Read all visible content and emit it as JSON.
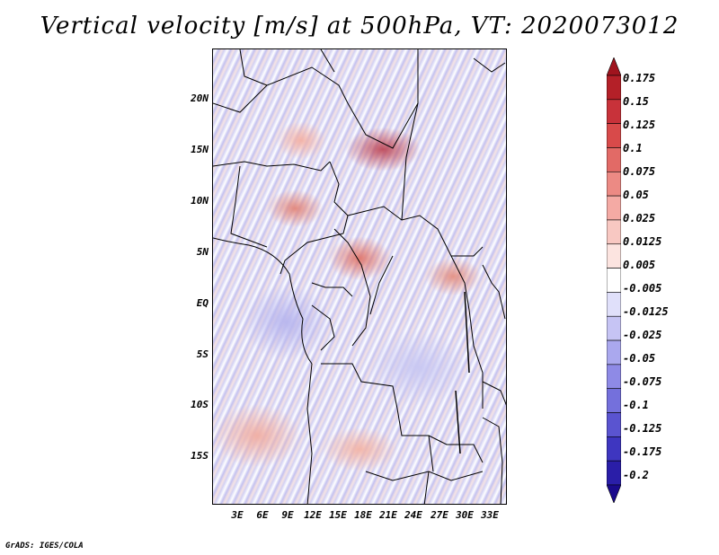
{
  "title": "Vertical velocity [m/s] at 500hPa, VT: 2020073012",
  "footer": "GrADS: IGES/COLA",
  "map": {
    "lat_labels": [
      "20N",
      "15N",
      "10N",
      "5N",
      "EQ",
      "5S",
      "10S",
      "15S"
    ],
    "lon_labels": [
      "3E",
      "6E",
      "9E",
      "12E",
      "15E",
      "18E",
      "21E",
      "24E",
      "27E",
      "30E",
      "33E"
    ]
  },
  "colorbar": {
    "labels": [
      "0.175",
      "0.15",
      "0.125",
      "0.1",
      "0.075",
      "0.05",
      "0.025",
      "0.0125",
      "0.005",
      "-0.005",
      "-0.0125",
      "-0.025",
      "-0.05",
      "-0.075",
      "-0.1",
      "-0.125",
      "-0.175",
      "-0.2"
    ],
    "colors": [
      "#a0141e",
      "#b42028",
      "#c8323a",
      "#d84a4a",
      "#e26a66",
      "#ec8a84",
      "#f4aaa4",
      "#f8c8c2",
      "#fce4e0",
      "#ffffff",
      "#e0e0fa",
      "#c6c4f4",
      "#aaa8ee",
      "#8e8ae6",
      "#7470dc",
      "#5a54d0",
      "#3e36c0",
      "#2a1ea8",
      "#1a0a8c"
    ]
  }
}
